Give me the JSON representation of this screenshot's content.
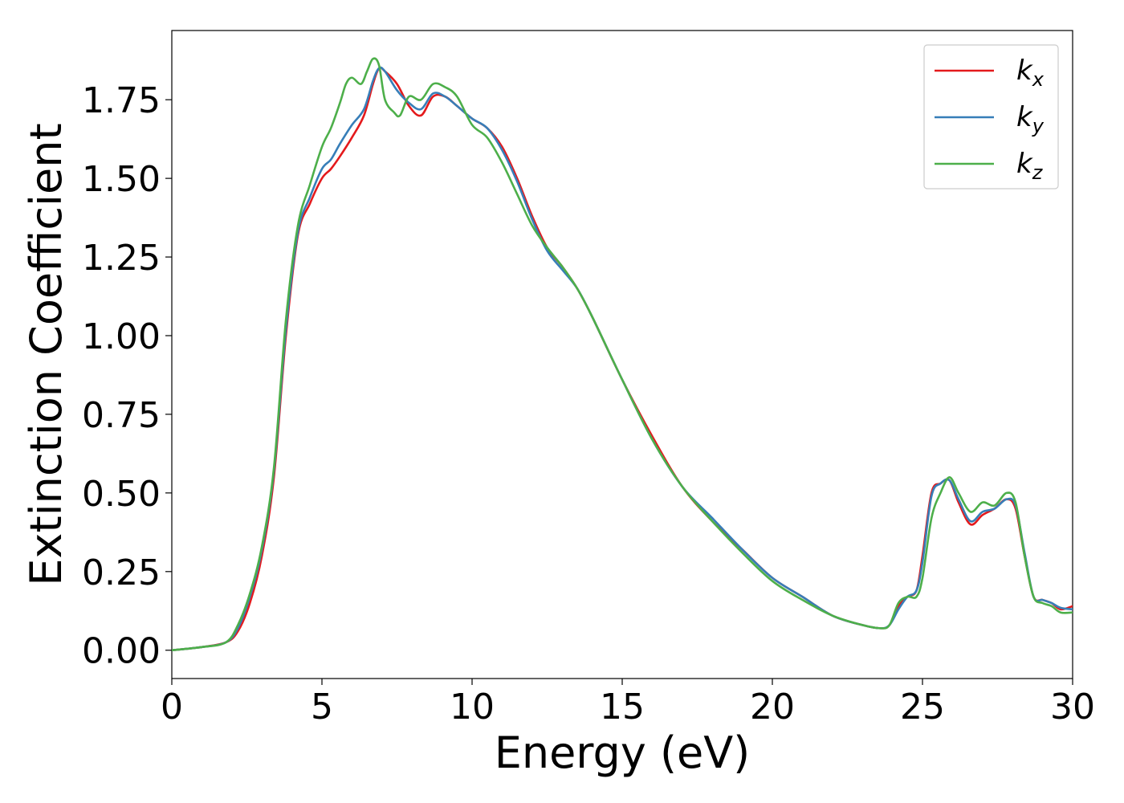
{
  "chart_data": {
    "type": "line",
    "title": "",
    "xlabel": "Energy (eV)",
    "ylabel": "Extinction Coefficient",
    "xlim": [
      0,
      30
    ],
    "ylim": [
      -0.09,
      1.97
    ],
    "xticks": [
      0,
      5,
      10,
      15,
      20,
      25,
      30
    ],
    "xtick_labels": [
      "0",
      "5",
      "10",
      "15",
      "20",
      "25",
      "30"
    ],
    "yticks": [
      0.0,
      0.25,
      0.5,
      0.75,
      1.0,
      1.25,
      1.5,
      1.75
    ],
    "ytick_labels": [
      "0.00",
      "0.25",
      "0.50",
      "0.75",
      "1.00",
      "1.25",
      "1.50",
      "1.75"
    ],
    "grid": false,
    "legend_position": "top-right",
    "series": [
      {
        "name": "k_x",
        "legend_main": "k",
        "legend_sub": "x",
        "color": "#e41a1c",
        "x": [
          0,
          1,
          1.8,
          2.2,
          2.6,
          3.0,
          3.4,
          3.8,
          4.2,
          4.6,
          5.0,
          5.3,
          5.6,
          6.0,
          6.4,
          6.7,
          6.9,
          7.1,
          7.5,
          7.9,
          8.3,
          8.7,
          9.1,
          9.5,
          10.0,
          10.5,
          11.0,
          11.5,
          12.0,
          12.5,
          13.0,
          13.5,
          14.0,
          15.0,
          16.0,
          17.0,
          18.0,
          19.0,
          20.0,
          21.0,
          22.0,
          23.0,
          23.6,
          23.9,
          24.2,
          24.5,
          24.8,
          25.0,
          25.3,
          25.6,
          25.9,
          26.2,
          26.6,
          27.0,
          27.4,
          27.8,
          28.1,
          28.4,
          28.7,
          29.0,
          29.3,
          29.6,
          30.0
        ],
        "y": [
          0.0,
          0.01,
          0.025,
          0.06,
          0.15,
          0.3,
          0.55,
          1.0,
          1.32,
          1.42,
          1.5,
          1.53,
          1.57,
          1.63,
          1.7,
          1.8,
          1.85,
          1.84,
          1.8,
          1.73,
          1.7,
          1.76,
          1.76,
          1.73,
          1.69,
          1.66,
          1.6,
          1.5,
          1.38,
          1.28,
          1.22,
          1.15,
          1.06,
          0.86,
          0.68,
          0.52,
          0.41,
          0.32,
          0.23,
          0.17,
          0.11,
          0.08,
          0.07,
          0.08,
          0.14,
          0.17,
          0.19,
          0.3,
          0.5,
          0.53,
          0.54,
          0.47,
          0.4,
          0.43,
          0.45,
          0.48,
          0.45,
          0.3,
          0.17,
          0.16,
          0.15,
          0.13,
          0.14
        ]
      },
      {
        "name": "k_y",
        "legend_main": "k",
        "legend_sub": "y",
        "color": "#377eb8",
        "x": [
          0,
          1,
          1.8,
          2.2,
          2.6,
          3.0,
          3.4,
          3.8,
          4.2,
          4.6,
          5.0,
          5.3,
          5.6,
          6.0,
          6.4,
          6.7,
          6.9,
          7.1,
          7.5,
          7.9,
          8.3,
          8.7,
          9.1,
          9.5,
          10.0,
          10.5,
          11.0,
          11.5,
          12.0,
          12.5,
          13.0,
          13.5,
          14.0,
          15.0,
          16.0,
          17.0,
          18.0,
          19.0,
          20.0,
          21.0,
          22.0,
          23.0,
          23.6,
          23.9,
          24.2,
          24.5,
          24.8,
          25.0,
          25.3,
          25.6,
          25.9,
          26.2,
          26.6,
          27.0,
          27.4,
          27.8,
          28.1,
          28.4,
          28.7,
          29.0,
          29.3,
          29.6,
          30.0
        ],
        "y": [
          0.0,
          0.01,
          0.025,
          0.07,
          0.17,
          0.32,
          0.57,
          1.02,
          1.33,
          1.44,
          1.53,
          1.56,
          1.61,
          1.67,
          1.72,
          1.81,
          1.85,
          1.84,
          1.78,
          1.74,
          1.72,
          1.77,
          1.76,
          1.73,
          1.69,
          1.66,
          1.59,
          1.49,
          1.37,
          1.27,
          1.21,
          1.15,
          1.06,
          0.86,
          0.67,
          0.52,
          0.42,
          0.32,
          0.23,
          0.17,
          0.11,
          0.08,
          0.07,
          0.08,
          0.13,
          0.17,
          0.19,
          0.28,
          0.49,
          0.53,
          0.54,
          0.48,
          0.41,
          0.44,
          0.45,
          0.48,
          0.46,
          0.31,
          0.17,
          0.16,
          0.15,
          0.135,
          0.13
        ]
      },
      {
        "name": "k_z",
        "legend_main": "k",
        "legend_sub": "z",
        "color": "#4daf4a",
        "x": [
          0,
          1,
          1.8,
          2.2,
          2.6,
          3.0,
          3.4,
          3.8,
          4.2,
          4.6,
          5.0,
          5.3,
          5.6,
          5.8,
          6.0,
          6.3,
          6.5,
          6.7,
          6.9,
          7.1,
          7.4,
          7.6,
          7.9,
          8.3,
          8.7,
          9.1,
          9.5,
          10.0,
          10.5,
          11.0,
          11.5,
          12.0,
          12.5,
          13.0,
          13.5,
          14.0,
          15.0,
          16.0,
          17.0,
          18.0,
          19.0,
          20.0,
          21.0,
          22.0,
          23.0,
          23.6,
          23.9,
          24.2,
          24.5,
          24.8,
          25.0,
          25.3,
          25.6,
          25.9,
          26.2,
          26.6,
          27.0,
          27.4,
          27.8,
          28.1,
          28.4,
          28.7,
          29.0,
          29.3,
          29.6,
          30.0
        ],
        "y": [
          0.0,
          0.01,
          0.025,
          0.08,
          0.18,
          0.33,
          0.58,
          1.05,
          1.35,
          1.48,
          1.6,
          1.66,
          1.74,
          1.8,
          1.82,
          1.8,
          1.84,
          1.88,
          1.86,
          1.75,
          1.71,
          1.7,
          1.76,
          1.75,
          1.8,
          1.79,
          1.76,
          1.67,
          1.63,
          1.55,
          1.45,
          1.35,
          1.28,
          1.22,
          1.15,
          1.06,
          0.86,
          0.67,
          0.52,
          0.41,
          0.31,
          0.22,
          0.16,
          0.11,
          0.08,
          0.07,
          0.08,
          0.15,
          0.17,
          0.17,
          0.23,
          0.42,
          0.5,
          0.55,
          0.5,
          0.44,
          0.47,
          0.46,
          0.5,
          0.47,
          0.3,
          0.17,
          0.15,
          0.14,
          0.12,
          0.12
        ]
      }
    ]
  }
}
